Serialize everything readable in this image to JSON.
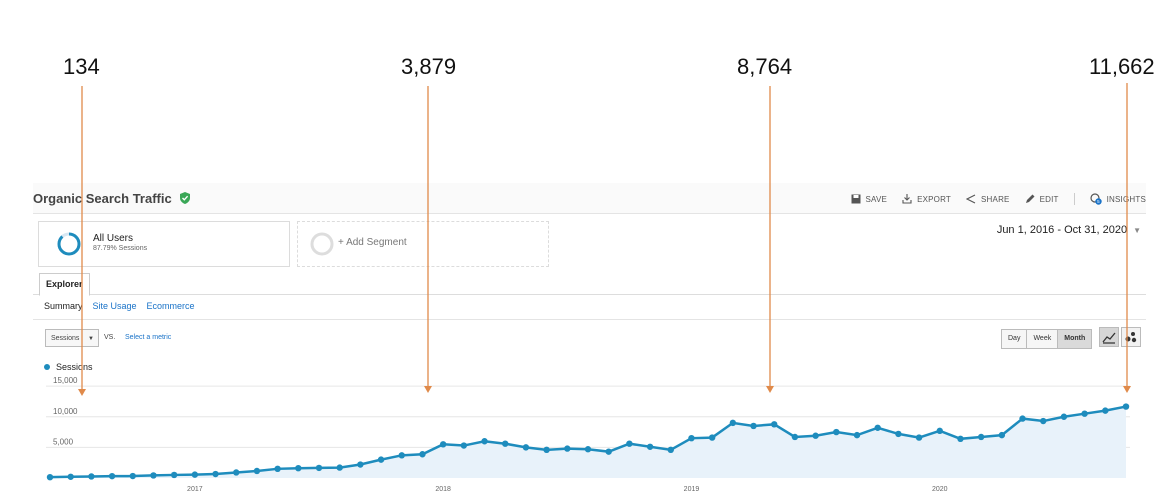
{
  "callouts": [
    "134",
    "3,879",
    "8,764",
    "11,662"
  ],
  "header": {
    "title": "Organic Search Traffic",
    "actions": {
      "save": "SAVE",
      "export": "EXPORT",
      "share": "SHARE",
      "edit": "EDIT",
      "insights": "INSIGHTS"
    },
    "insights_badge": "5"
  },
  "segments": {
    "primary": {
      "name": "All Users",
      "sub": "87.79% Sessions"
    },
    "add": "+ Add Segment"
  },
  "date_range": "Jun 1, 2016 - Oct 31, 2020",
  "tabs": {
    "explorer": "Explorer",
    "subtabs": [
      "Summary",
      "Site Usage",
      "Ecommerce"
    ]
  },
  "controls": {
    "metric": "Sessions",
    "vs": "VS.",
    "select_metric": "Select a metric",
    "granularity": [
      "Day",
      "Week",
      "Month"
    ],
    "granularity_active": "Month"
  },
  "colors": {
    "line": "#1e8cbd",
    "area": "#e8f2fa",
    "arrow": "#e08a4a",
    "verified": "#3aa757"
  },
  "chart_data": {
    "type": "area",
    "series": [
      {
        "name": "Sessions",
        "values": [
          134,
          200,
          250,
          300,
          320,
          420,
          500,
          550,
          650,
          900,
          1150,
          1500,
          1600,
          1650,
          1700,
          2200,
          3000,
          3700,
          3879,
          5500,
          5300,
          6000,
          5600,
          5000,
          4600,
          4800,
          4700,
          4300,
          5600,
          5100,
          4600,
          6500,
          6600,
          9000,
          8500,
          8764,
          6700,
          6900,
          7500,
          7000,
          8200,
          7200,
          6600,
          7700,
          6400,
          6700,
          7000,
          9700,
          9300,
          10000,
          10500,
          11000,
          11662
        ]
      }
    ],
    "x_start": "Jun 2016",
    "x_ticks": [
      "2017",
      "2018",
      "2019",
      "2020"
    ],
    "y_ticks": [
      "15,000",
      "10,000",
      "5,000"
    ],
    "ylim": [
      0,
      16000
    ]
  }
}
